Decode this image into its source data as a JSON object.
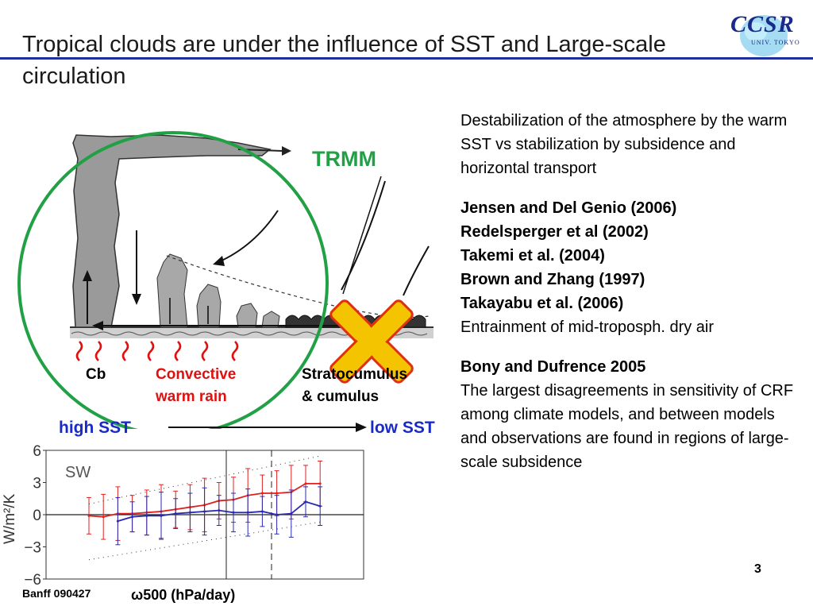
{
  "title": "Tropical clouds are under the influence of SST and Large-scale circulation",
  "logo": {
    "text": "CCSR",
    "subtext": "UNIV. TOKYO"
  },
  "diagram": {
    "trmm_label": "TRMM",
    "cb_label": "Cb",
    "convective_line1": "Convective",
    "convective_line2": "warm rain",
    "strato_line1": "Stratocumulus",
    "strato_line2": "& cumulus",
    "high_sst": "high SST",
    "low_sst": "low SST",
    "colors": {
      "circle": "#22a046",
      "cross": "#f5c400",
      "cross_outline": "#e03010",
      "heat": "#e01010"
    }
  },
  "right": {
    "intro": "Destabilization of the atmosphere by the warm SST vs stabilization by subsidence and horizontal transport",
    "refs": [
      "Jensen and Del Genio (2006)",
      "Redelsperger et al (2002)",
      "Takemi et al. (2004)",
      "Brown and Zhang (1997)",
      "Takayabu et al. (2006)"
    ],
    "entrainment": "Entrainment of mid-troposph. dry air",
    "bony_title": "Bony and  Dufrence 2005",
    "bony_text": "The largest disagreements in sensitivity of CRF among climate models, and between models and observations are found in regions of large-scale subsidence"
  },
  "chart_data": {
    "type": "line",
    "title": "SW",
    "ylabel": "W/m²/K",
    "xlabel": "ω500  (hPa/day)",
    "ylim": [
      -6,
      6
    ],
    "yticks": [
      "6",
      "3",
      "0",
      "−3",
      "−6"
    ],
    "series": [
      {
        "color": "#e02020",
        "values": [
          -0.1,
          -0.2,
          0.1,
          0.1,
          0.2,
          0.3,
          0.5,
          0.7,
          0.9,
          1.3,
          1.4,
          1.8,
          2.0,
          2.0,
          2.1,
          2.9,
          2.9
        ]
      },
      {
        "color": "#2a2ab0",
        "values": [
          null,
          null,
          -0.6,
          -0.2,
          -0.1,
          -0.1,
          0.1,
          0.2,
          0.3,
          0.4,
          0.2,
          0.2,
          0.3,
          0.0,
          0.1,
          1.2,
          0.8
        ]
      }
    ]
  },
  "footer": {
    "left": "Banff 090427",
    "page": "3"
  }
}
